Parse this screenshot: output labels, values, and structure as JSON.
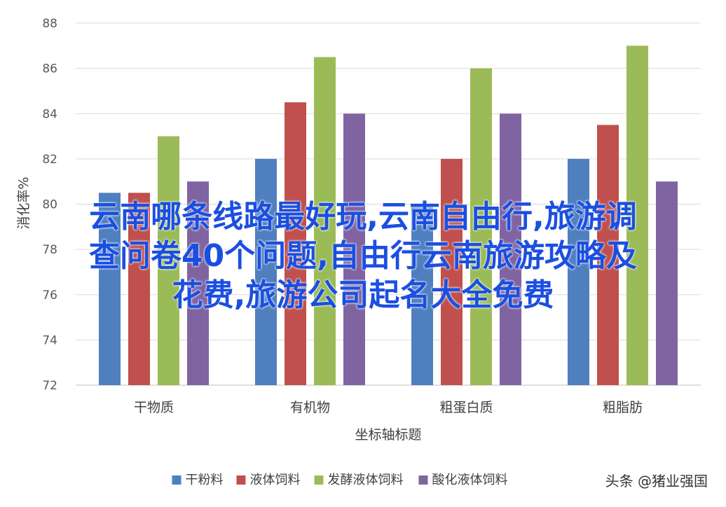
{
  "chart_data": {
    "type": "bar",
    "categories": [
      "干物质",
      "有机物",
      "粗蛋白质",
      "粗脂肪"
    ],
    "series": [
      {
        "name": "干粉料",
        "values": [
          80.5,
          82,
          80,
          82
        ],
        "color": "#4f7fbf"
      },
      {
        "name": "液体饲料",
        "values": [
          80.5,
          84.5,
          82,
          83.5
        ],
        "color": "#c0504d"
      },
      {
        "name": "发酵液体饲料",
        "values": [
          83,
          86.5,
          86,
          87
        ],
        "color": "#9bbb59"
      },
      {
        "name": "酸化液体饲料",
        "values": [
          81,
          84,
          84,
          81
        ],
        "color": "#8064a2"
      }
    ],
    "ylim": [
      72,
      88
    ],
    "yticks": [
      "72",
      "74",
      "76",
      "78",
      "80",
      "82",
      "84",
      "86",
      "88"
    ],
    "xlabel": "坐标轴标题",
    "ylabel": "消化率%",
    "legend_position": "bottom",
    "grid": true
  },
  "overlay": {
    "lines": [
      "云南哪条线路最好玩,云南自由行,旅游调",
      "查问卷40个问题,自由行云南旅游攻略及",
      "花费,旅游公司起名大全免费"
    ]
  },
  "watermark": "头条 @猪业强国"
}
